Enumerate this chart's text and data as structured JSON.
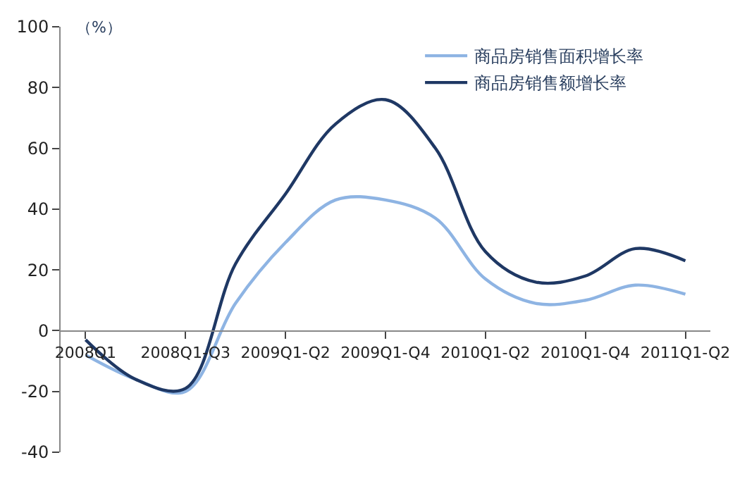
{
  "chart_data": {
    "type": "line",
    "ylabel": "（%）",
    "categories": [
      "2008Q1",
      null,
      "2008Q1-Q3",
      null,
      "2009Q1-Q2",
      null,
      "2009Q1-Q4",
      null,
      "2010Q1-Q2",
      null,
      "2010Q1-Q4",
      null,
      "2011Q1-Q2"
    ],
    "series": [
      {
        "name": "商品房销售面积增长率",
        "color": "#8eb4e3",
        "values": [
          -8,
          -16,
          -20,
          9,
          29,
          43,
          43,
          37,
          17,
          9,
          10,
          15,
          12
        ]
      },
      {
        "name": "商品房销售额增长率",
        "color": "#1f3864",
        "values": [
          -3,
          -16,
          -19,
          22,
          45,
          68,
          76,
          60,
          26,
          16,
          18,
          27,
          23
        ]
      }
    ],
    "ylim": [
      -40,
      100
    ],
    "yticks": [
      -40,
      -20,
      0,
      20,
      40,
      60,
      80,
      100
    ],
    "legend": "top right",
    "marker": "none",
    "line_style": "solid"
  }
}
